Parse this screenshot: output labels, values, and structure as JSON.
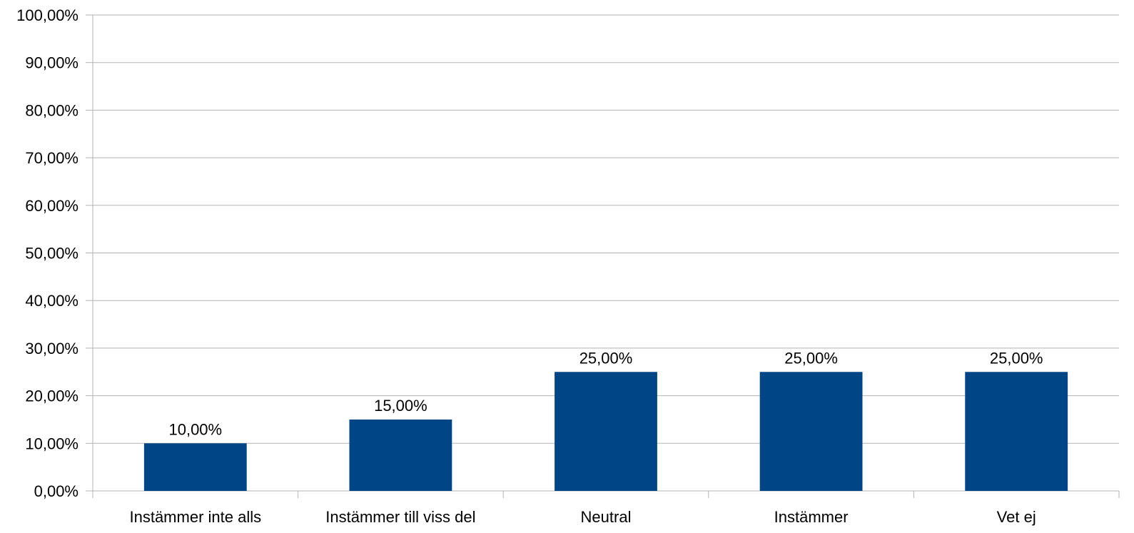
{
  "chart_data": {
    "type": "bar",
    "categories": [
      "Instämmer inte alls",
      "Instämmer till viss del",
      "Neutral",
      "Instämmer",
      "Vet ej"
    ],
    "values": [
      10,
      15,
      25,
      25,
      25
    ],
    "data_labels": [
      "10,00%",
      "15,00%",
      "25,00%",
      "25,00%",
      "25,00%"
    ],
    "y_ticks": [
      "0,00%",
      "10,00%",
      "20,00%",
      "30,00%",
      "40,00%",
      "50,00%",
      "60,00%",
      "70,00%",
      "80,00%",
      "90,00%",
      "100,00%"
    ],
    "ylim": [
      0,
      100
    ],
    "title": "",
    "xlabel": "",
    "ylabel": "",
    "grid": true,
    "legend": "none",
    "colors": {
      "bar": "#004586",
      "grid": "#b3b3b3",
      "axis": "#b3b3b3",
      "text": "#000000"
    }
  }
}
